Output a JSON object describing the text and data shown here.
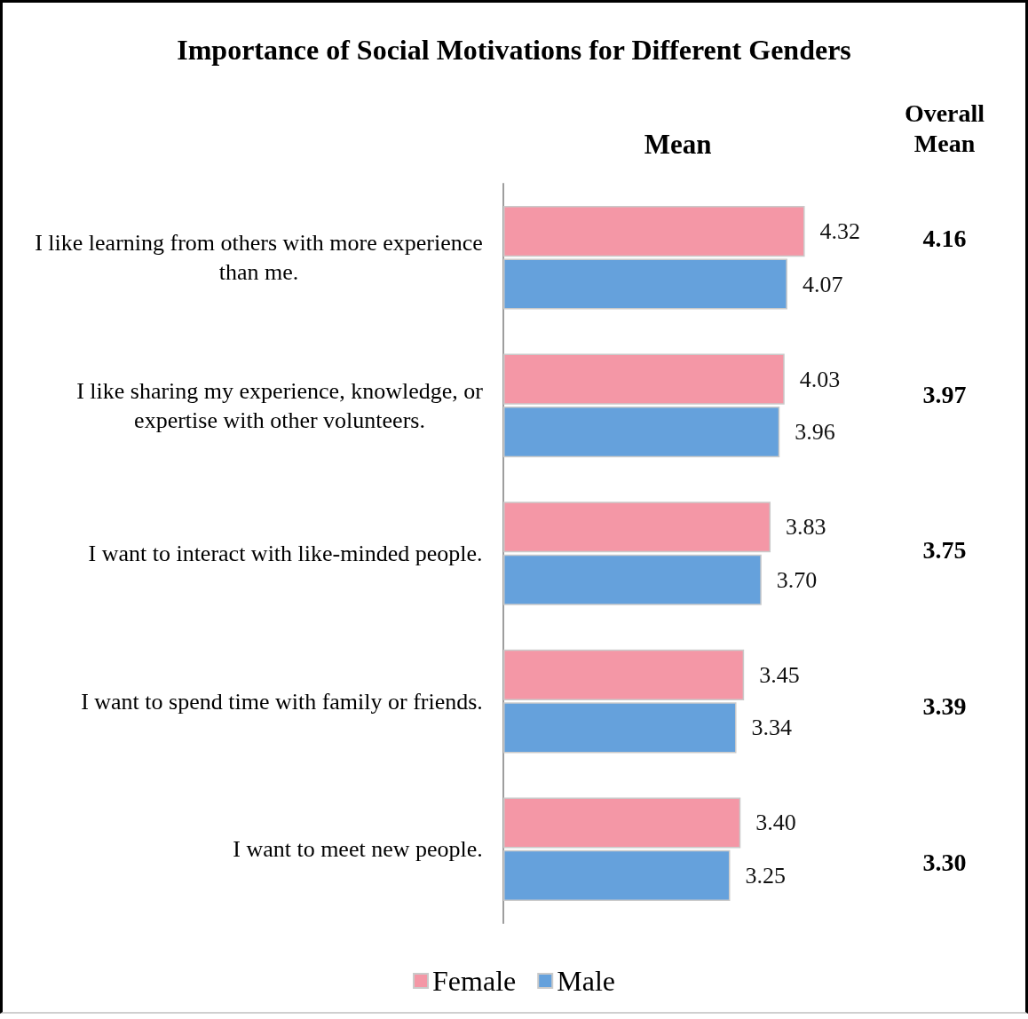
{
  "chart_data": [
    {
      "type": "bar",
      "orientation": "horizontal",
      "title": "Importance of Social Motivations for Different Genders",
      "annotations": [
        "Mean"
      ],
      "categories": [
        "I like learning from others with more experience than me.",
        "I like sharing my experience, knowledge, or expertise with other volunteers.",
        "I want to interact with like-minded people.",
        "I want to spend time with family or friends.",
        "I want to meet new people."
      ],
      "series": [
        {
          "name": "Female",
          "color": "#f497a6",
          "values": [
            4.32,
            4.03,
            3.83,
            3.45,
            3.4
          ],
          "value_labels": [
            "4.32",
            "4.03",
            "3.83",
            "3.45",
            "3.40"
          ]
        },
        {
          "name": "Male",
          "color": "#65a1dc",
          "values": [
            4.07,
            3.96,
            3.7,
            3.34,
            3.25
          ],
          "value_labels": [
            "4.07",
            "3.96",
            "3.70",
            "3.34",
            "3.25"
          ]
        }
      ],
      "tick_labels": "y",
      "legend": "bottom"
    },
    {
      "type": "other",
      "title": "Overall Mean",
      "annotations": [
        "4.16",
        "3.97",
        "3.75",
        "3.39",
        "3.30"
      ]
    }
  ]
}
